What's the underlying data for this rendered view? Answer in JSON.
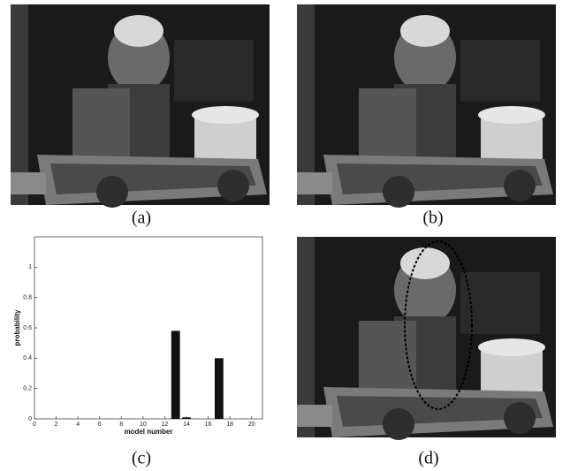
{
  "captions": [
    "(a)",
    "(b)",
    "(c)",
    "(d)"
  ],
  "chart_data": {
    "type": "bar",
    "xlabel": "model number",
    "ylabel": "probability",
    "x": [
      13,
      14,
      17
    ],
    "values": [
      0.58,
      0.01,
      0.4
    ],
    "color": "#111111",
    "xlim": [
      0,
      21
    ],
    "xticks": [
      0,
      2,
      4,
      6,
      8,
      10,
      12,
      14,
      16,
      18,
      20
    ],
    "ylim": [
      0,
      1.2
    ],
    "yticks": [
      0,
      0.2,
      0.4,
      0.6,
      0.8,
      1
    ]
  }
}
